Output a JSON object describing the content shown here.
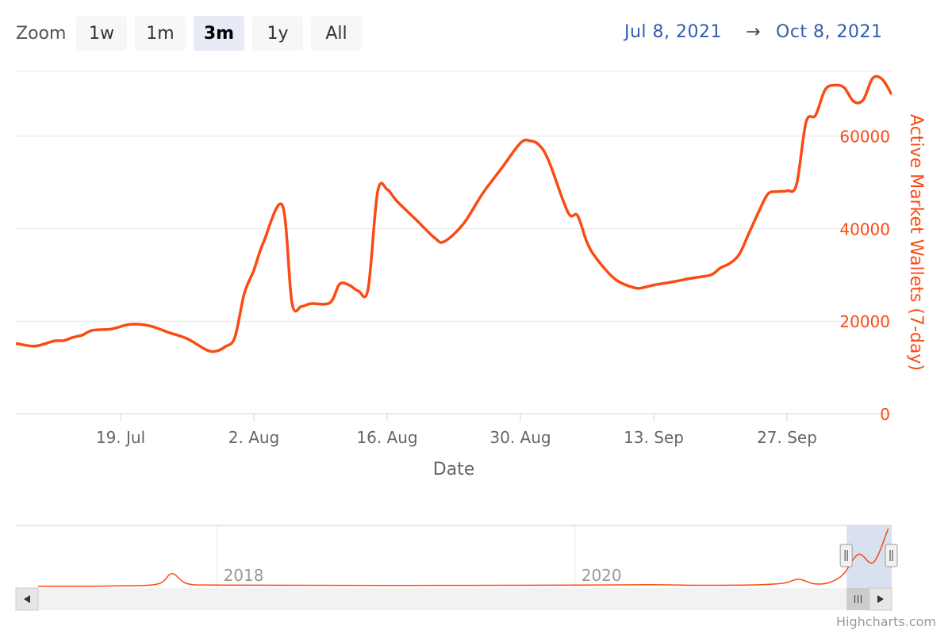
{
  "range_selector": {
    "zoom_label": "Zoom",
    "buttons": [
      {
        "label": "1w",
        "active": false
      },
      {
        "label": "1m",
        "active": false
      },
      {
        "label": "3m",
        "active": true
      },
      {
        "label": "1y",
        "active": false
      },
      {
        "label": "All",
        "active": false
      }
    ],
    "from": "Jul 8, 2021",
    "arrow": "→",
    "to": "Oct 8, 2021"
  },
  "colors": {
    "series": "#fa4b14",
    "axis_label": "#fa4b14",
    "grid": "#e6e6e6",
    "date_input": "#335cad",
    "navigator_mask": "#ccd6eb"
  },
  "chart_data": {
    "type": "line",
    "xlabel": "Date",
    "ylabel": "Active Market Wallets (7-day)",
    "ylim": [
      0,
      74000
    ],
    "y_ticks": [
      0,
      20000,
      40000,
      60000
    ],
    "x_ticks": [
      "19. Jul",
      "2. Aug",
      "16. Aug",
      "30. Aug",
      "13. Sep",
      "27. Sep"
    ],
    "grid": true,
    "series": [
      {
        "x": [
          "2021-07-08",
          "2021-07-10",
          "2021-07-12",
          "2021-07-13",
          "2021-07-14",
          "2021-07-15",
          "2021-07-16",
          "2021-07-18",
          "2021-07-20",
          "2021-07-22",
          "2021-07-24",
          "2021-07-26",
          "2021-07-28",
          "2021-07-29",
          "2021-07-30",
          "2021-07-31",
          "2021-08-01",
          "2021-08-02",
          "2021-08-03",
          "2021-08-05",
          "2021-08-06",
          "2021-08-07",
          "2021-08-08",
          "2021-08-10",
          "2021-08-11",
          "2021-08-12",
          "2021-08-13",
          "2021-08-14",
          "2021-08-15",
          "2021-08-16",
          "2021-08-17",
          "2021-08-19",
          "2021-08-21",
          "2021-08-22",
          "2021-08-24",
          "2021-08-26",
          "2021-08-28",
          "2021-08-30",
          "2021-08-31",
          "2021-09-01",
          "2021-09-02",
          "2021-09-04",
          "2021-09-05",
          "2021-09-06",
          "2021-09-07",
          "2021-09-09",
          "2021-09-11",
          "2021-09-12",
          "2021-09-13",
          "2021-09-15",
          "2021-09-17",
          "2021-09-19",
          "2021-09-20",
          "2021-09-21",
          "2021-09-22",
          "2021-09-23",
          "2021-09-24",
          "2021-09-25",
          "2021-09-26",
          "2021-09-27",
          "2021-09-28",
          "2021-09-29",
          "2021-09-30",
          "2021-10-01",
          "2021-10-02",
          "2021-10-03",
          "2021-10-04",
          "2021-10-05",
          "2021-10-06",
          "2021-10-07",
          "2021-10-08"
        ],
        "y": [
          15200,
          14600,
          15700,
          15800,
          16500,
          17000,
          18000,
          18300,
          19300,
          19000,
          17600,
          16200,
          13800,
          13500,
          14500,
          16500,
          26000,
          31000,
          37000,
          45000,
          24000,
          23200,
          23800,
          24000,
          28000,
          27800,
          26500,
          27000,
          48000,
          48500,
          46000,
          42000,
          38000,
          37200,
          41000,
          47500,
          53000,
          58500,
          59000,
          58000,
          54500,
          43500,
          42800,
          37000,
          33500,
          29000,
          27200,
          27300,
          27800,
          28500,
          29300,
          30000,
          31500,
          32500,
          34500,
          39000,
          43500,
          47500,
          48000,
          48200,
          49500,
          63000,
          64500,
          70000,
          71000,
          70500,
          67500,
          67800,
          72500,
          72300,
          69000
        ]
      }
    ],
    "navigator": {
      "x_ticks": [
        "2018",
        "2020"
      ],
      "x": [
        "2017-01",
        "2017-06",
        "2017-09",
        "2017-10",
        "2017-11",
        "2018-01",
        "2018-06",
        "2019-01",
        "2019-06",
        "2020-01",
        "2020-06",
        "2020-09",
        "2021-01",
        "2021-03",
        "2021-04",
        "2021-05",
        "2021-06",
        "2021-07",
        "2021-08",
        "2021-09",
        "2021-10"
      ],
      "y": [
        200,
        600,
        3000,
        16000,
        3500,
        1800,
        1500,
        1300,
        1400,
        1700,
        2200,
        1500,
        2000,
        4000,
        9000,
        3500,
        4500,
        15000,
        40000,
        30000,
        72000
      ]
    }
  },
  "credits": "Highcharts.com"
}
